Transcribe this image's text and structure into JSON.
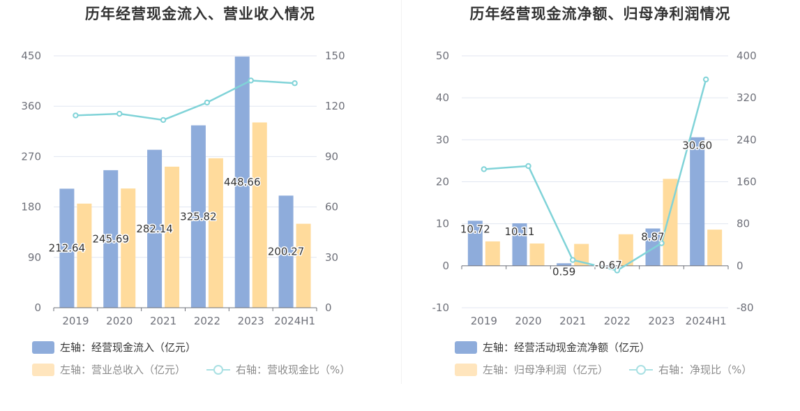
{
  "colors": {
    "bar_primary": "#8eacdb",
    "bar_secondary": "#ffdb9c",
    "line": "#80d3d8",
    "grid": "#e0e6f1",
    "axis": "#6e7079"
  },
  "chart_data": [
    {
      "type": "bar+line",
      "title": "历年经营现金流入、营业收入情况",
      "categories": [
        "2019",
        "2020",
        "2021",
        "2022",
        "2023",
        "2024H1"
      ],
      "y_left": {
        "min": 0,
        "max": 450,
        "ticks": [
          "0",
          "90",
          "180",
          "270",
          "360",
          "450"
        ]
      },
      "y_right": {
        "min": 0,
        "max": 150,
        "ticks": [
          "0",
          "30",
          "60",
          "90",
          "120",
          "150"
        ]
      },
      "series": [
        {
          "name": "左轴：经营现金流入（亿元）",
          "type": "bar",
          "axis": "left",
          "values": [
            212.64,
            245.69,
            282.14,
            325.82,
            448.66,
            200.27
          ],
          "labels": [
            "212.64",
            "245.69",
            "282.14",
            "325.82",
            "448.66",
            "200.27"
          ]
        },
        {
          "name": "左轴：营业总收入（亿元）",
          "type": "bar",
          "axis": "left",
          "values": [
            186,
            213,
            252,
            267,
            331,
            150
          ]
        },
        {
          "name": "右轴：营收现金比（%）",
          "type": "line",
          "axis": "right",
          "values": [
            114.5,
            115.5,
            111.8,
            122.2,
            135.3,
            133.7
          ]
        }
      ]
    },
    {
      "type": "bar+line",
      "title": "历年经营现金流净额、归母净利润情况",
      "categories": [
        "2019",
        "2020",
        "2021",
        "2022",
        "2023",
        "2024H1"
      ],
      "y_left": {
        "min": -10,
        "max": 50,
        "ticks": [
          "-10",
          "0",
          "10",
          "20",
          "30",
          "40",
          "50"
        ]
      },
      "y_right": {
        "min": -80,
        "max": 400,
        "ticks": [
          "-80",
          "0",
          "80",
          "160",
          "240",
          "320",
          "400"
        ]
      },
      "series": [
        {
          "name": "左轴：经营活动现金流净额（亿元）",
          "type": "bar",
          "axis": "left",
          "values": [
            10.72,
            10.11,
            0.59,
            -0.67,
            8.87,
            30.6
          ],
          "labels": [
            "10.72",
            "10.11",
            "0.59",
            "-0.67",
            "8.87",
            "30.60"
          ]
        },
        {
          "name": "左轴：归母净利润（亿元）",
          "type": "bar",
          "axis": "left",
          "values": [
            5.8,
            5.3,
            5.2,
            7.5,
            20.7,
            8.6
          ]
        },
        {
          "name": "右轴：净现比（%）",
          "type": "line",
          "axis": "right",
          "values": [
            184,
            190,
            11,
            -9,
            43,
            355
          ]
        }
      ]
    }
  ]
}
